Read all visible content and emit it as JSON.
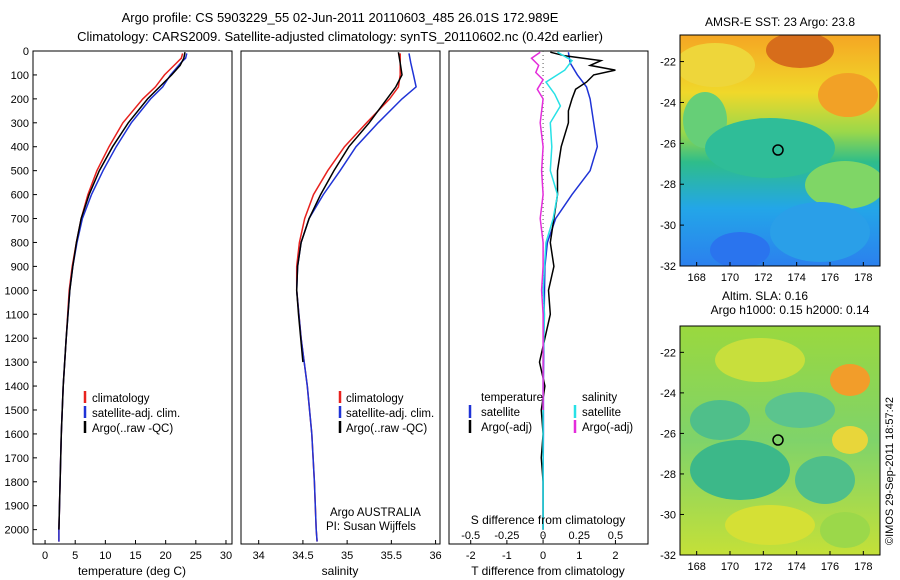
{
  "header": {
    "line1": "Argo profile: CS 5903229_55 02-Jun-2011 20110603_485 26.01S 172.989E",
    "line2": "Climatology: CARS2009. Satellite-adjusted climatology: synTS_20110602.nc (0.42d earlier)"
  },
  "colors": {
    "climatology": "#e8221e",
    "satellite": "#1f33d6",
    "argo": "#000000",
    "salinity_sat": "#27e1e6",
    "salinity_argo": "#e42ddb"
  },
  "depth_ticks": [
    "0",
    "100",
    "200",
    "300",
    "400",
    "500",
    "600",
    "700",
    "800",
    "900",
    "1000",
    "1100",
    "1200",
    "1300",
    "1400",
    "1500",
    "1600",
    "1700",
    "1800",
    "1900",
    "2000"
  ],
  "chart_data": [
    {
      "type": "line",
      "panel": "temperature",
      "xlabel": "temperature (deg C)",
      "xticks": [
        "0",
        "5",
        "10",
        "15",
        "20",
        "25",
        "30"
      ],
      "xlim": [
        -2,
        31
      ],
      "ylim": [
        0,
        2060
      ],
      "legend": [
        "climatology",
        "satellite-adj. clim.",
        "Argo(..raw -QC)"
      ],
      "series": [
        {
          "name": "climatology",
          "depth": [
            10,
            30,
            50,
            80,
            100,
            150,
            200,
            300,
            400,
            500,
            600,
            700,
            800,
            900,
            1000,
            1200,
            1400,
            1600,
            1800,
            2000,
            2050
          ],
          "values": [
            22.8,
            22.6,
            21.8,
            20.6,
            19.8,
            18.3,
            16.2,
            12.9,
            10.6,
            8.6,
            7.1,
            6.0,
            5.2,
            4.5,
            4.0,
            3.5,
            3.0,
            2.7,
            2.5,
            2.3,
            2.3
          ]
        },
        {
          "name": "satellite-adj. clim.",
          "depth": [
            10,
            30,
            50,
            80,
            100,
            150,
            200,
            300,
            400,
            500,
            600,
            700,
            800,
            900,
            1000,
            1200,
            1400,
            1600,
            1800,
            2000,
            2050
          ],
          "values": [
            23.5,
            23.3,
            22.5,
            21.5,
            20.8,
            19.5,
            17.5,
            14.3,
            11.8,
            9.6,
            7.7,
            6.2,
            5.3,
            4.6,
            4.1,
            3.5,
            3.0,
            2.7,
            2.5,
            2.3,
            2.3
          ]
        },
        {
          "name": "Argo(..raw -QC)",
          "depth": [
            5,
            30,
            60,
            100,
            150,
            200,
            300,
            400,
            500,
            600,
            700,
            800,
            900,
            1000,
            1200,
            1400,
            1600,
            1800,
            2000
          ],
          "values": [
            23.2,
            23.0,
            22.4,
            21.0,
            19.0,
            17.0,
            13.8,
            11.2,
            9.0,
            7.3,
            6.0,
            5.2,
            4.6,
            4.1,
            3.5,
            3.0,
            2.7,
            2.5,
            2.3
          ]
        }
      ]
    },
    {
      "type": "line",
      "panel": "salinity",
      "xlabel": "salinity",
      "xticks": [
        "34",
        "34.5",
        "35",
        "35.5",
        "36"
      ],
      "xlim": [
        33.8,
        36.05
      ],
      "ylim": [
        0,
        2060
      ],
      "legend": [
        "climatology",
        "satellite-adj. clim.",
        "Argo(..raw -QC)"
      ],
      "note": [
        "Argo AUSTRALIA",
        "PI: Susan Wijffels"
      ],
      "series": [
        {
          "name": "climatology",
          "depth": [
            10,
            50,
            100,
            150,
            200,
            300,
            400,
            500,
            600,
            700,
            800,
            900,
            1000,
            1200,
            1400,
            1600,
            1800,
            2000,
            2050
          ],
          "values": [
            35.6,
            35.6,
            35.6,
            35.58,
            35.48,
            35.22,
            34.97,
            34.78,
            34.62,
            34.52,
            34.46,
            34.43,
            34.43,
            34.48,
            34.55,
            34.6,
            34.63,
            34.65,
            34.66
          ]
        },
        {
          "name": "satellite-adj. clim.",
          "depth": [
            10,
            50,
            100,
            150,
            200,
            300,
            400,
            500,
            600,
            700,
            800,
            900,
            1000,
            1200,
            1400,
            1600,
            1800,
            2000,
            2050
          ],
          "values": [
            35.7,
            35.72,
            35.75,
            35.78,
            35.62,
            35.35,
            35.1,
            34.92,
            34.73,
            34.57,
            34.48,
            34.44,
            34.43,
            34.48,
            34.55,
            34.6,
            34.63,
            34.65,
            34.66
          ]
        },
        {
          "name": "Argo(..raw -QC)",
          "depth": [
            5,
            50,
            100,
            150,
            200,
            300,
            400,
            500,
            600,
            700,
            800,
            900,
            1000,
            1100,
            1300
          ],
          "values": [
            35.58,
            35.6,
            35.62,
            35.55,
            35.45,
            35.25,
            35.02,
            34.85,
            34.7,
            34.57,
            34.48,
            34.44,
            34.43,
            34.45,
            34.5
          ]
        }
      ]
    },
    {
      "type": "line",
      "panel": "difference",
      "xlabel": "T difference from climatology",
      "xlabel_top": "S difference from climatology",
      "xticks": [
        "-2",
        "-1",
        "0",
        "1",
        "2"
      ],
      "sticks": [
        "-0.5",
        "-0.25",
        "0",
        "0.25",
        "0.5"
      ],
      "xlim": [
        -2.6,
        2.9
      ],
      "ylim": [
        0,
        2060
      ],
      "legend_t": {
        "title": "temperature",
        "items": [
          "satellite",
          "Argo(-adj)"
        ]
      },
      "legend_s": {
        "title": "salinity",
        "items": [
          "satellite",
          "Argo(-adj)"
        ]
      },
      "series": [
        {
          "name": "T satellite",
          "depth": [
            5,
            50,
            100,
            150,
            200,
            250,
            300,
            400,
            500,
            600,
            700,
            800,
            900,
            1000,
            1200,
            1400,
            1600,
            1800,
            2000
          ],
          "values": [
            0.7,
            0.75,
            0.95,
            1.2,
            1.3,
            1.35,
            1.4,
            1.5,
            1.3,
            0.8,
            0.35,
            0.12,
            0.05,
            0.04,
            0.02,
            0.01,
            0.01,
            0.0,
            0.0
          ]
        },
        {
          "name": "T Argo(-adj)",
          "depth": [
            5,
            20,
            40,
            60,
            80,
            100,
            130,
            160,
            200,
            250,
            300,
            400,
            500,
            600,
            700,
            800,
            900,
            1000,
            1100,
            1200,
            1300,
            1400,
            1500,
            1600,
            1700,
            1800,
            1900,
            2000
          ],
          "values": [
            0.2,
            0.6,
            1.6,
            1.3,
            2.0,
            1.4,
            1.2,
            0.9,
            0.8,
            0.7,
            0.7,
            0.5,
            0.4,
            0.4,
            0.3,
            0.2,
            0.3,
            0.15,
            0.2,
            0.05,
            -0.1,
            0.05,
            -0.05,
            0.0,
            -0.05,
            0.0,
            0.0,
            0.0
          ]
        },
        {
          "name": "S satellite",
          "depth": [
            5,
            40,
            80,
            130,
            180,
            230,
            300,
            400,
            500,
            600,
            700,
            800,
            900,
            1000,
            1100,
            1300,
            1500,
            1800,
            2000
          ],
          "values": [
            0.1,
            0.2,
            0.15,
            0.02,
            0.08,
            0.12,
            0.05,
            0.06,
            0.05,
            0.1,
            0.07,
            0.02,
            0.01,
            0.0,
            0.01,
            0.0,
            0.0,
            0.0,
            0.0
          ]
        },
        {
          "name": "S Argo(-adj)",
          "depth": [
            5,
            30,
            60,
            90,
            120,
            160,
            200,
            300,
            400,
            500,
            600,
            700,
            800,
            900,
            1000,
            1100,
            1200,
            1300,
            1400,
            1500
          ],
          "values": [
            -0.02,
            -0.08,
            -0.03,
            -0.05,
            0.0,
            -0.04,
            0.0,
            -0.02,
            0.0,
            -0.01,
            0.0,
            -0.02,
            0.0,
            0.0,
            -0.01,
            0.0,
            0.0,
            0.0,
            0.0,
            0.0
          ]
        }
      ]
    },
    {
      "type": "heatmap",
      "panel": "sst_map",
      "title": "AMSR-E SST: 23 Argo: 23.8",
      "xticks": [
        "168",
        "170",
        "172",
        "174",
        "176",
        "178"
      ],
      "yticks": [
        "-22",
        "-24",
        "-26",
        "-28",
        "-30",
        "-32"
      ],
      "xlim": [
        167,
        179
      ],
      "ylim": [
        -32,
        -20.7
      ],
      "argo_position": [
        172.99,
        -26.01
      ]
    },
    {
      "type": "heatmap",
      "panel": "sla_map",
      "title": [
        "Altim. SLA: 0.16",
        "Argo h1000: 0.15 h2000: 0.14"
      ],
      "xticks": [
        "168",
        "170",
        "172",
        "174",
        "176",
        "178"
      ],
      "yticks": [
        "-22",
        "-24",
        "-26",
        "-28",
        "-30",
        "-32"
      ],
      "xlim": [
        167,
        179
      ],
      "ylim": [
        -32,
        -20.7
      ],
      "argo_position": [
        172.99,
        -26.01
      ]
    }
  ],
  "credit": "©IMOS 29-Sep-2011 18:57:42"
}
